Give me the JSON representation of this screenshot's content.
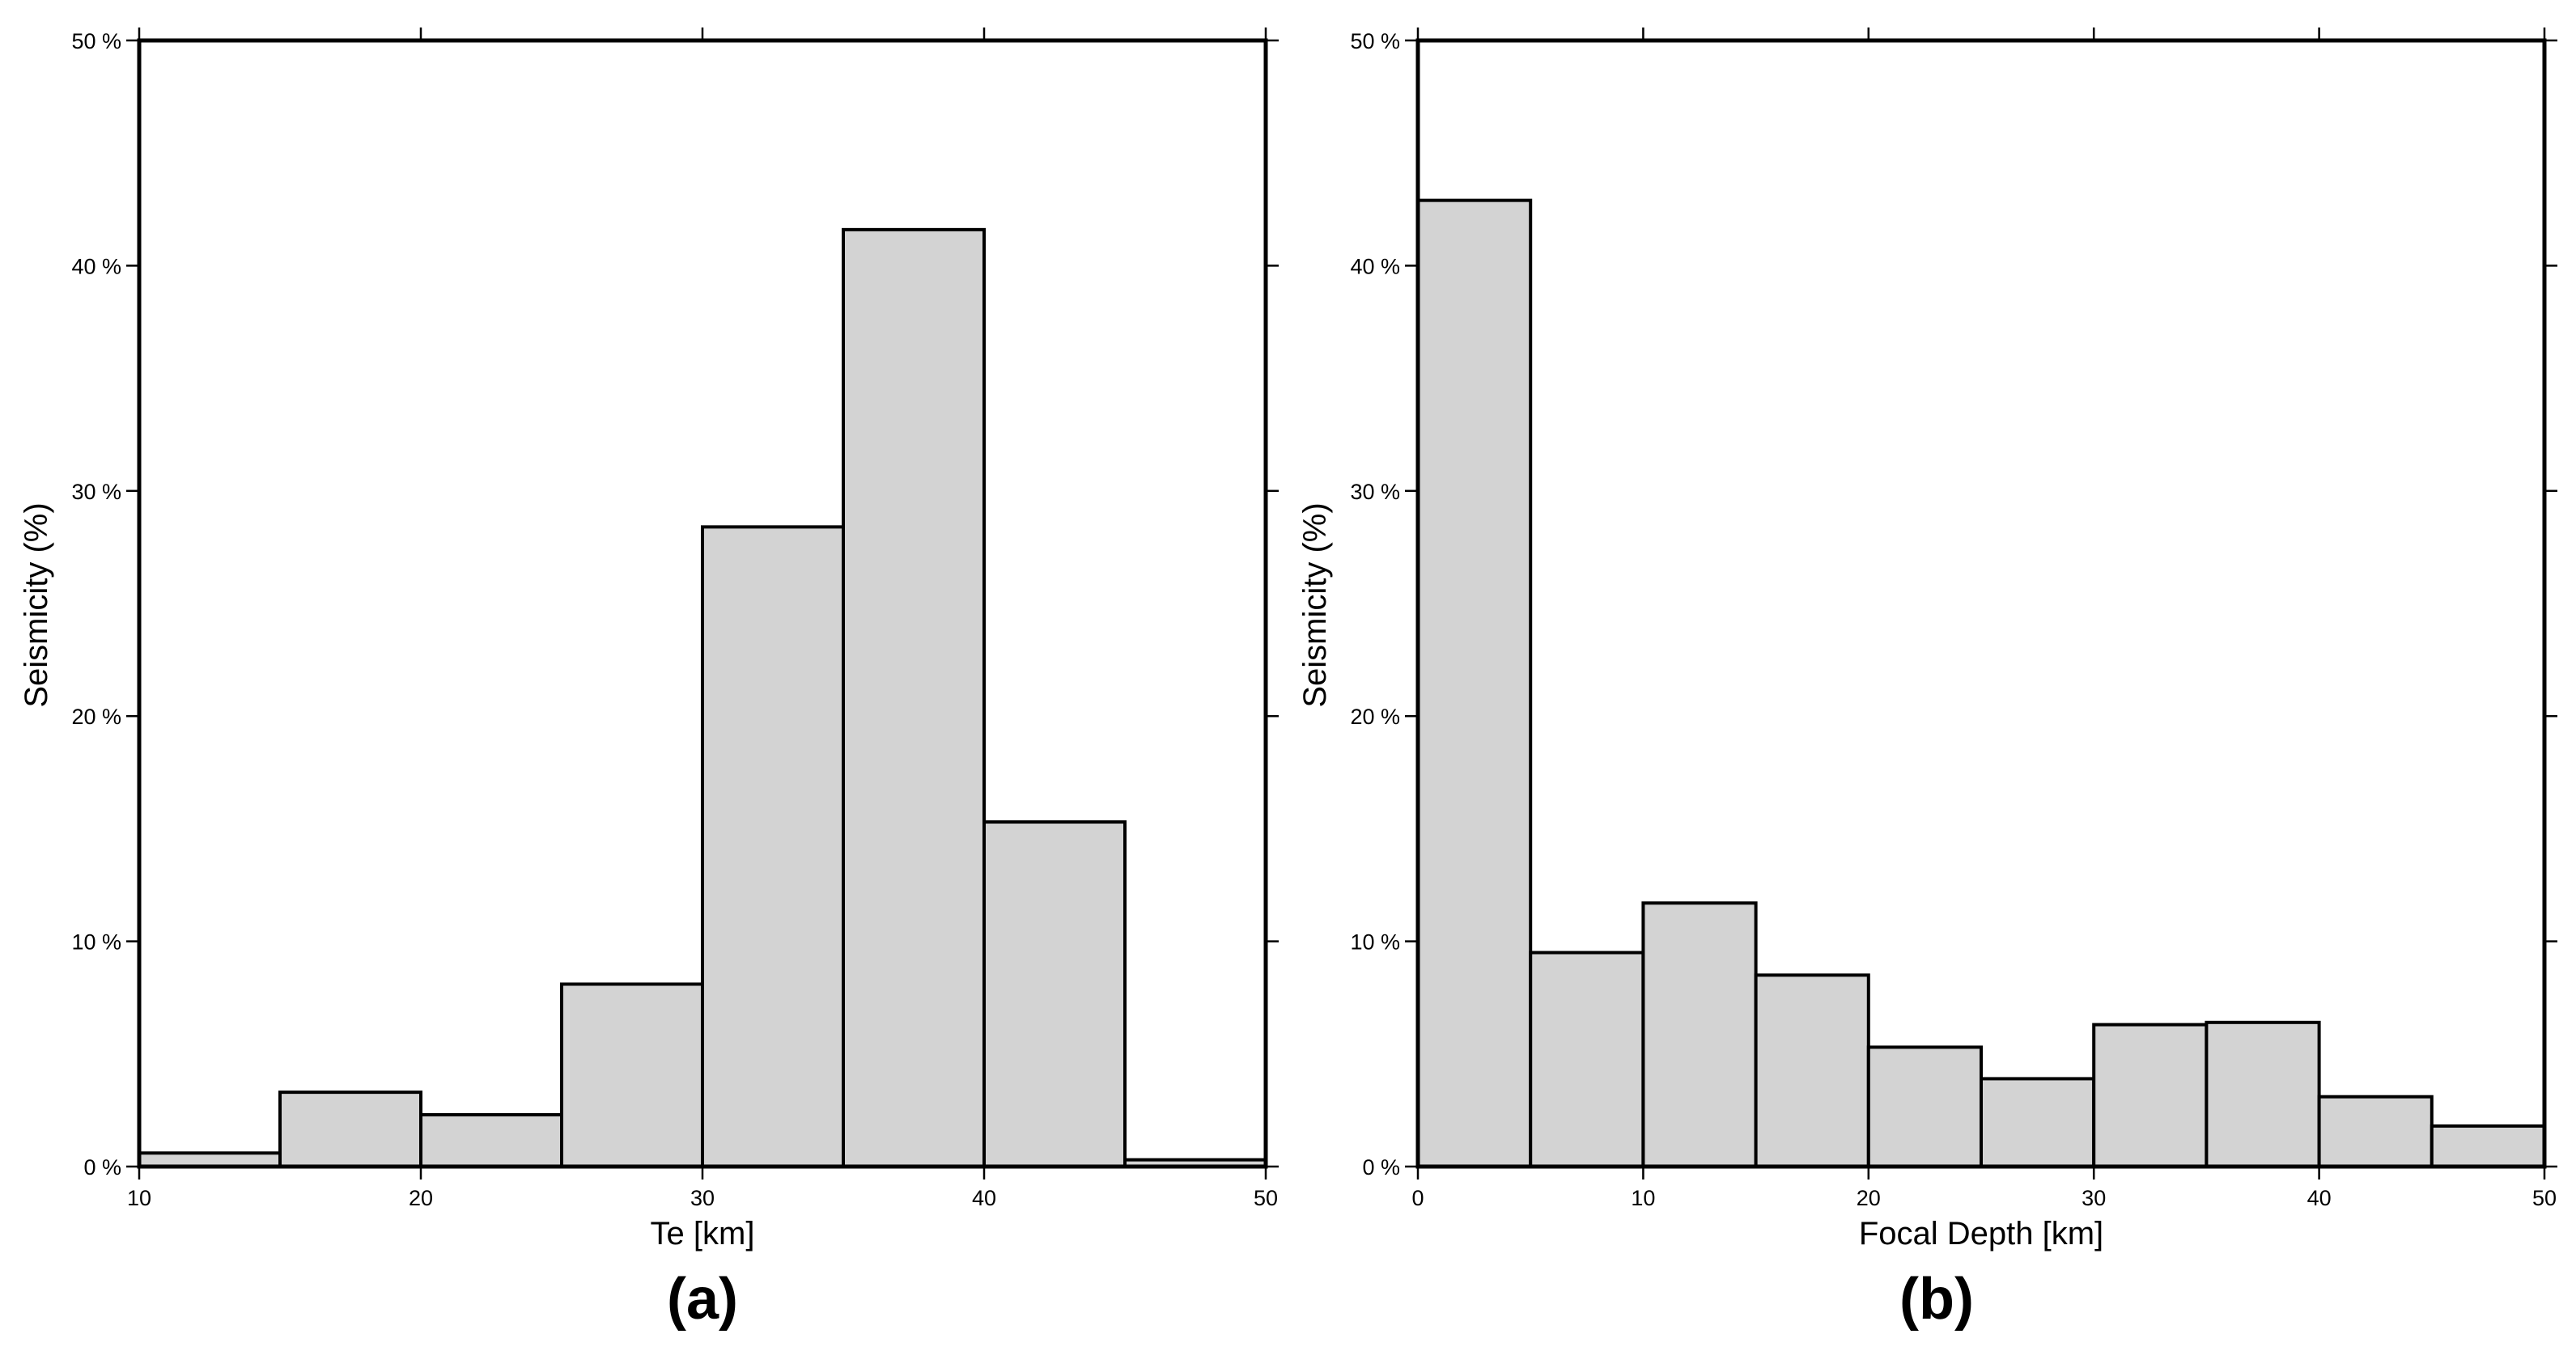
{
  "colors": {
    "bar_fill": "#d3d3d3",
    "bar_stroke": "#000000",
    "frame": "#000000"
  },
  "chart_data": [
    {
      "type": "bar",
      "panel_label": "(a)",
      "title": "",
      "xlabel": "Te [km]",
      "ylabel": "Seismicity (%)",
      "xlim": [
        10,
        50
      ],
      "ylim": [
        0,
        50
      ],
      "xticks": [
        10,
        20,
        30,
        40,
        50
      ],
      "yticks": [
        0,
        10,
        20,
        30,
        40,
        50
      ],
      "ytick_labels": [
        "0 %",
        "10 %",
        "20 %",
        "30 %",
        "40 %",
        "50 %"
      ],
      "grid": false,
      "bins": [
        {
          "x0": 10,
          "x1": 15,
          "value": 0.6
        },
        {
          "x0": 15,
          "x1": 20,
          "value": 3.3
        },
        {
          "x0": 20,
          "x1": 25,
          "value": 2.3
        },
        {
          "x0": 25,
          "x1": 30,
          "value": 8.1
        },
        {
          "x0": 30,
          "x1": 35,
          "value": 28.4
        },
        {
          "x0": 35,
          "x1": 40,
          "value": 41.6
        },
        {
          "x0": 40,
          "x1": 45,
          "value": 15.3
        },
        {
          "x0": 45,
          "x1": 50,
          "value": 0.3
        }
      ]
    },
    {
      "type": "bar",
      "panel_label": "(b)",
      "title": "",
      "xlabel": "Focal Depth [km]",
      "ylabel": "Seismicity (%)",
      "xlim": [
        0,
        50
      ],
      "ylim": [
        0,
        50
      ],
      "xticks": [
        0,
        10,
        20,
        30,
        40,
        50
      ],
      "yticks": [
        0,
        10,
        20,
        30,
        40,
        50
      ],
      "ytick_labels": [
        "0 %",
        "10 %",
        "20 %",
        "30 %",
        "40 %",
        "50 %"
      ],
      "grid": false,
      "bins": [
        {
          "x0": 0,
          "x1": 5,
          "value": 42.9
        },
        {
          "x0": 5,
          "x1": 10,
          "value": 9.5
        },
        {
          "x0": 10,
          "x1": 15,
          "value": 11.7
        },
        {
          "x0": 15,
          "x1": 20,
          "value": 8.5
        },
        {
          "x0": 20,
          "x1": 25,
          "value": 5.3
        },
        {
          "x0": 25,
          "x1": 30,
          "value": 3.9
        },
        {
          "x0": 30,
          "x1": 35,
          "value": 6.3
        },
        {
          "x0": 35,
          "x1": 40,
          "value": 6.4
        },
        {
          "x0": 40,
          "x1": 45,
          "value": 3.1
        },
        {
          "x0": 45,
          "x1": 50,
          "value": 1.8
        }
      ]
    }
  ]
}
